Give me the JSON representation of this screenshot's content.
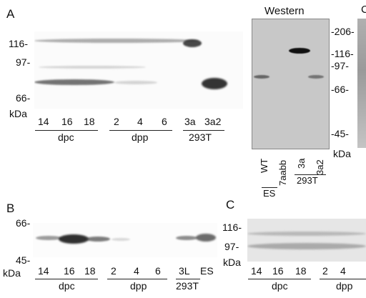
{
  "panelA": {
    "letter": "A",
    "markers": [
      "116-",
      "97-",
      "66-"
    ],
    "unit": "kDa",
    "lanes": [
      "14",
      "16",
      "18",
      "2",
      "4",
      "6",
      "3a",
      "3a2"
    ],
    "groups": [
      "dpc",
      "dpp",
      "293T"
    ]
  },
  "western": {
    "title": "Western",
    "markers": [
      "-206-",
      "-116-",
      "-97-",
      "-66-",
      "-45-"
    ],
    "unit": "kDa",
    "lanes": [
      "WT",
      "7aabb",
      "3a",
      "3a2"
    ],
    "groups": [
      "ES",
      "293T"
    ],
    "edge_letter": "C"
  },
  "panelB": {
    "letter": "B",
    "markers": [
      "66-",
      "45-"
    ],
    "unit": "kDa",
    "lanes": [
      "14",
      "16",
      "18",
      "2",
      "4",
      "6",
      "3L",
      "ES"
    ],
    "groups": [
      "dpc",
      "dpp",
      "293T"
    ]
  },
  "panelC": {
    "letter": "C",
    "markers": [
      "116-",
      "97-"
    ],
    "unit": "kDa",
    "lanes": [
      "14",
      "16",
      "18",
      "2",
      "4"
    ],
    "groups": [
      "dpc",
      "dpp"
    ]
  }
}
